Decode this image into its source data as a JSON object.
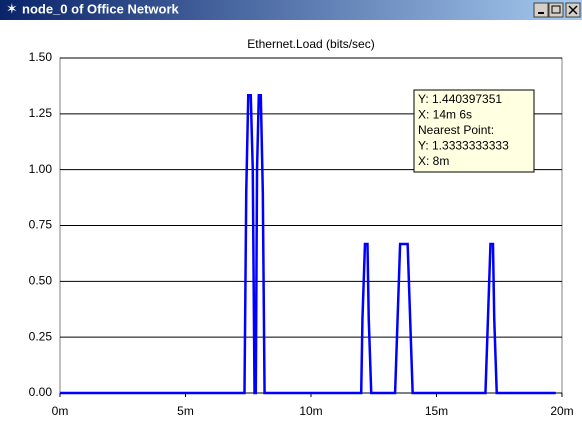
{
  "window": {
    "title": "node_0 of Office Network"
  },
  "chart_data": {
    "type": "line",
    "title": "Ethernet.Load (bits/sec)",
    "x": [
      0,
      7.35,
      7.42,
      7.5,
      7.6,
      7.68,
      7.75,
      7.8,
      7.85,
      7.92,
      8.0,
      8.08,
      8.15,
      12.0,
      12.05,
      12.15,
      12.25,
      12.3,
      12.4,
      13.35,
      13.45,
      13.55,
      13.85,
      13.95,
      14.05,
      16.95,
      17.05,
      17.15,
      17.25,
      17.3,
      17.4,
      19.75
    ],
    "series": [
      {
        "color": "#0000ff",
        "values": [
          0,
          0,
          0.9,
          1.333,
          1.333,
          1.0,
          0,
          0,
          1.0,
          1.333,
          1.333,
          0.9,
          0,
          0,
          0.333,
          0.667,
          0.667,
          0.333,
          0,
          0,
          0.333,
          0.667,
          0.667,
          0.333,
          0,
          0,
          0.333,
          0.667,
          0.667,
          0.333,
          0,
          0
        ]
      }
    ],
    "xlim": [
      0,
      20
    ],
    "xticks": [
      {
        "value": 0,
        "label": "0m"
      },
      {
        "value": 5,
        "label": "5m"
      },
      {
        "value": 10,
        "label": "10m"
      },
      {
        "value": 15,
        "label": "15m"
      },
      {
        "value": 20,
        "label": "20m"
      }
    ],
    "ylim": [
      0,
      1.5
    ],
    "yticks": [
      {
        "value": 0,
        "label": "0.00"
      },
      {
        "value": 0.25,
        "label": "0.25"
      },
      {
        "value": 0.5,
        "label": "0.50"
      },
      {
        "value": 0.75,
        "label": "0.75"
      },
      {
        "value": 1,
        "label": "1.00"
      },
      {
        "value": 1.25,
        "label": "1.25"
      },
      {
        "value": 1.5,
        "label": "1.50"
      }
    ],
    "grid": true,
    "tooltip": [
      "Y: 1.440397351",
      "X: 14m 6s",
      "Nearest Point:",
      "Y: 1.3333333333",
      "X: 8m"
    ]
  }
}
